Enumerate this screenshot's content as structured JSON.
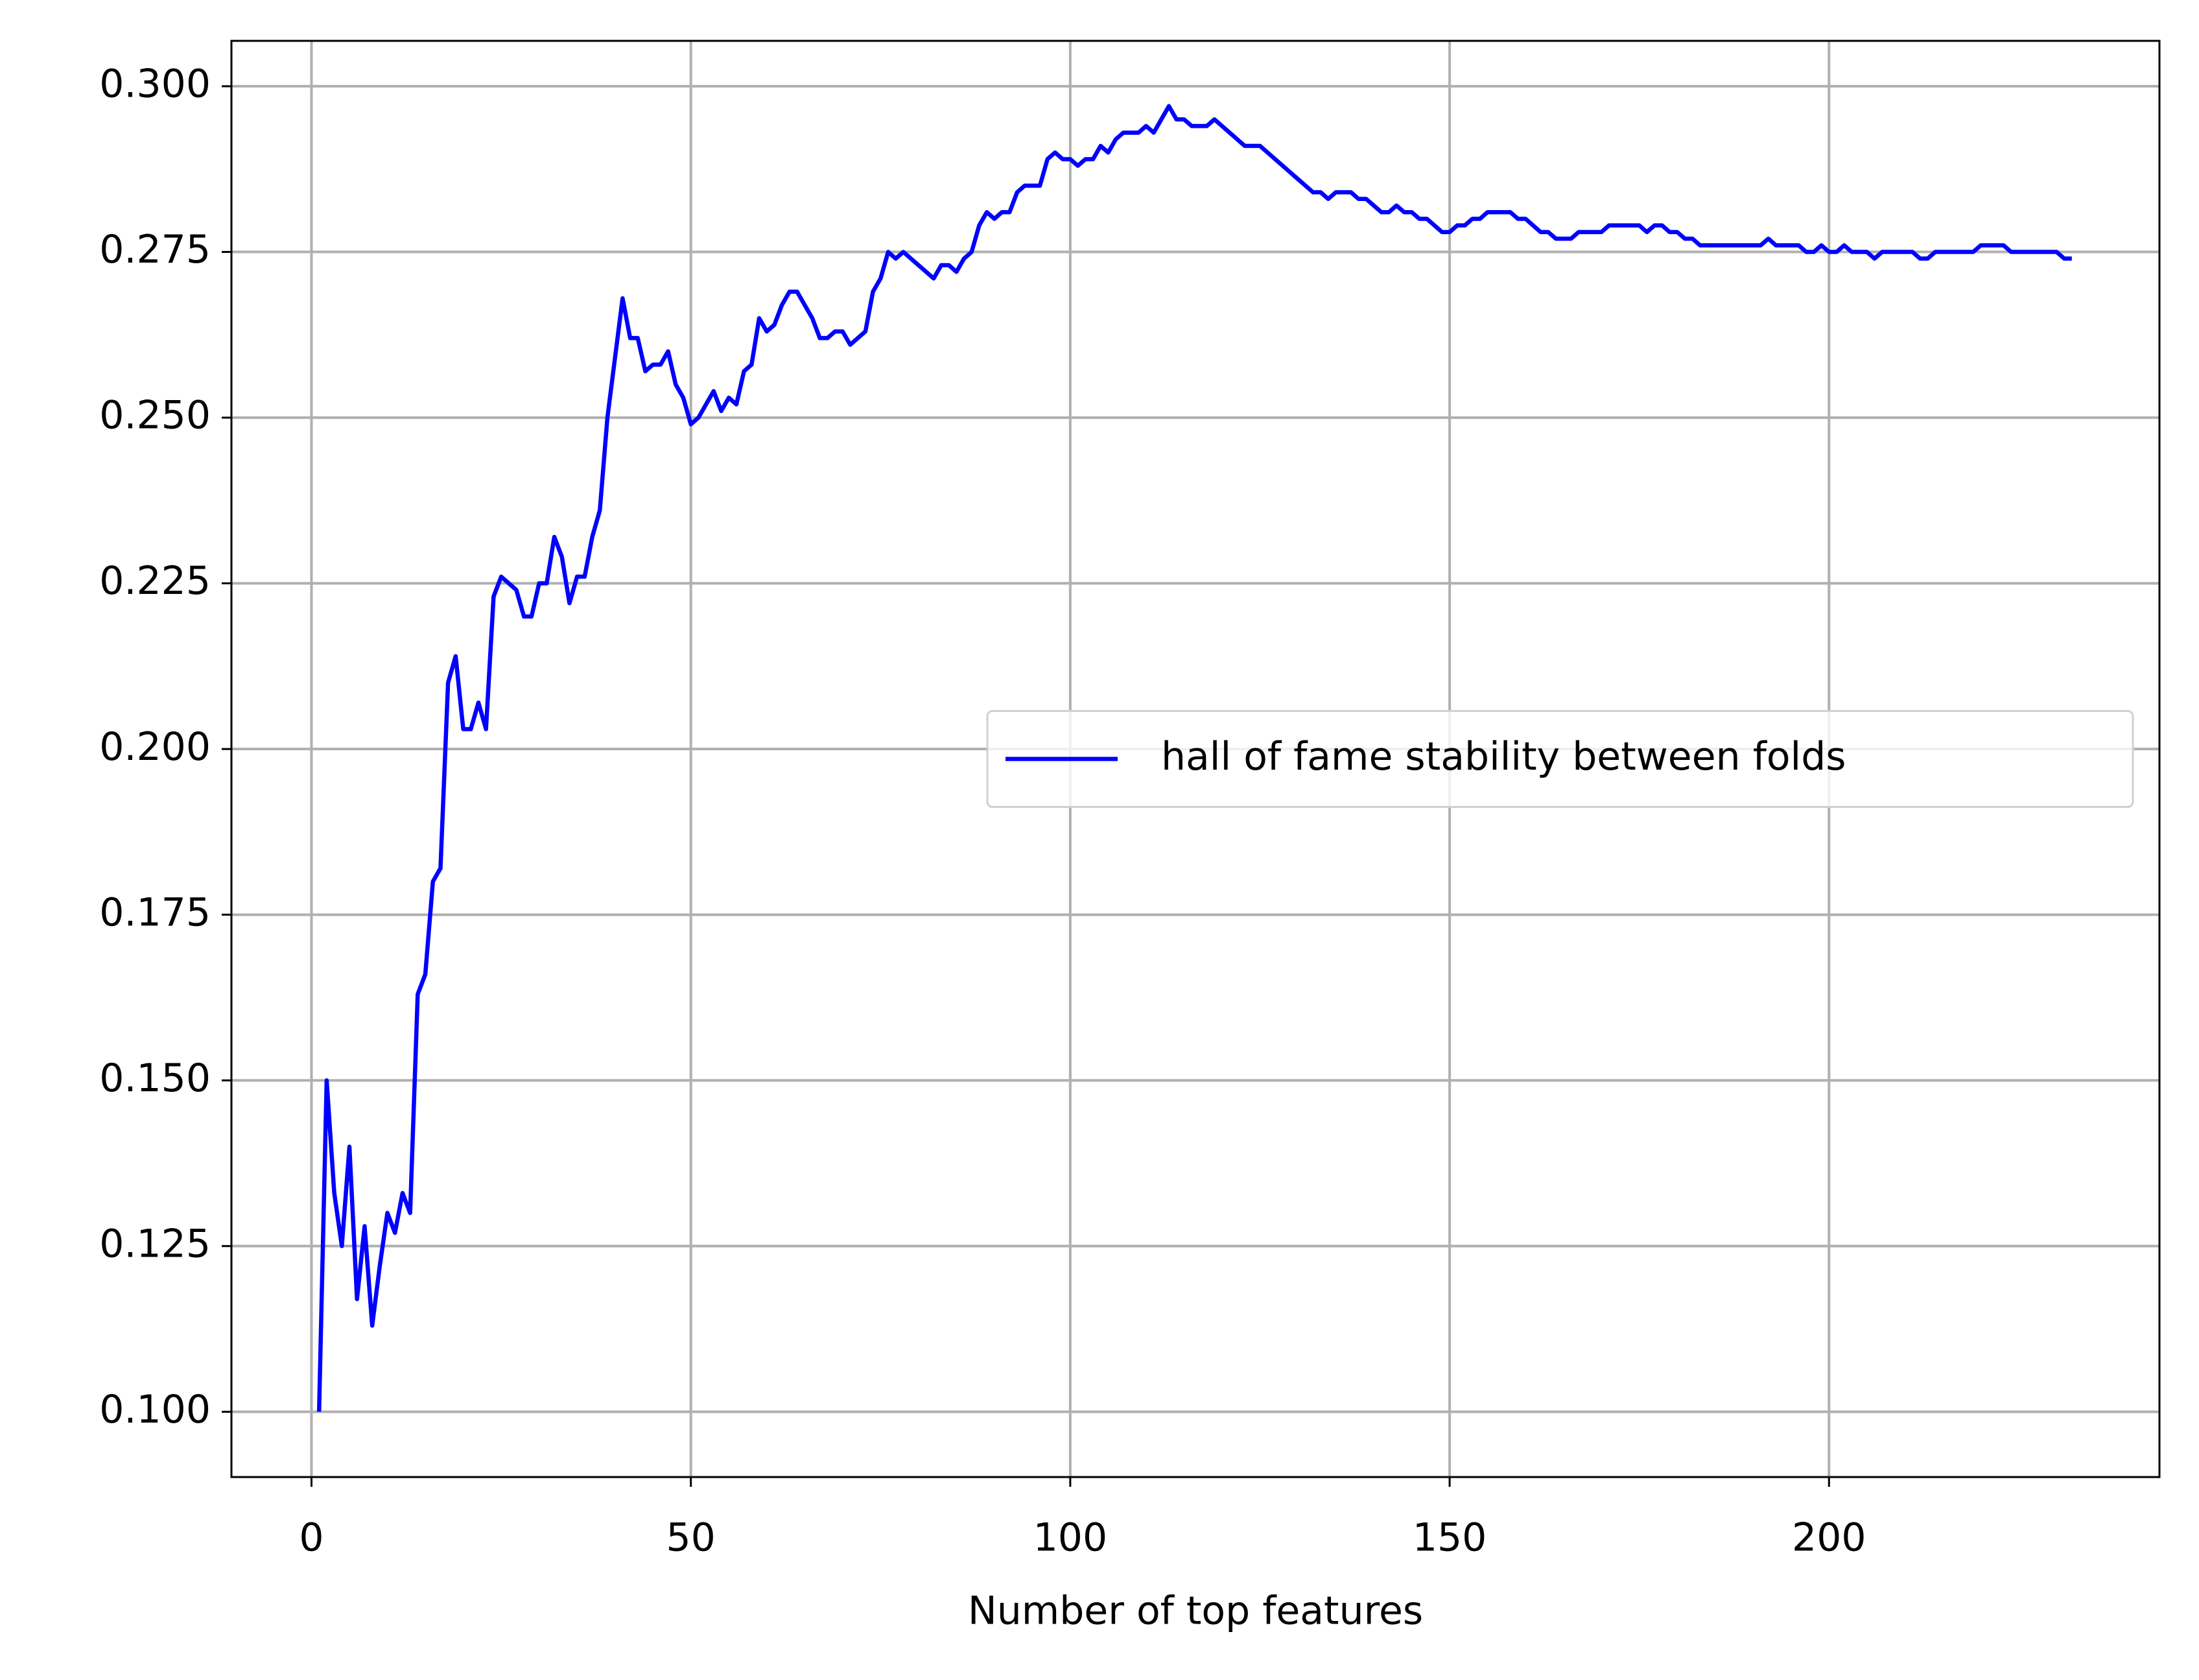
{
  "chart_data": {
    "type": "line",
    "xlabel": "Number of top features",
    "x": [
      1,
      2,
      3,
      4,
      5,
      6,
      7,
      8,
      9,
      10,
      11,
      12,
      13,
      14,
      15,
      16,
      17,
      18,
      19,
      20,
      21,
      22,
      23,
      24,
      25,
      26,
      27,
      28,
      29,
      30,
      31,
      32,
      33,
      34,
      35,
      36,
      37,
      38,
      39,
      40,
      41,
      42,
      43,
      44,
      45,
      46,
      47,
      48,
      49,
      50,
      51,
      52,
      53,
      54,
      55,
      56,
      57,
      58,
      59,
      60,
      61,
      62,
      63,
      64,
      65,
      66,
      67,
      68,
      69,
      70,
      71,
      72,
      73,
      74,
      75,
      76,
      77,
      78,
      79,
      80,
      81,
      82,
      83,
      84,
      85,
      86,
      87,
      88,
      89,
      90,
      91,
      92,
      93,
      94,
      95,
      96,
      97,
      98,
      99,
      100,
      101,
      102,
      103,
      104,
      105,
      106,
      107,
      108,
      109,
      110,
      111,
      112,
      113,
      114,
      115,
      116,
      117,
      118,
      119,
      120,
      121,
      122,
      123,
      124,
      125,
      126,
      127,
      128,
      129,
      130,
      131,
      132,
      133,
      134,
      135,
      136,
      137,
      138,
      139,
      140,
      141,
      142,
      143,
      144,
      145,
      146,
      147,
      148,
      149,
      150,
      151,
      152,
      153,
      154,
      155,
      156,
      157,
      158,
      159,
      160,
      161,
      162,
      163,
      164,
      165,
      166,
      167,
      168,
      169,
      170,
      171,
      172,
      173,
      174,
      175,
      176,
      177,
      178,
      179,
      180,
      181,
      182,
      183,
      184,
      185,
      186,
      187,
      188,
      189,
      190,
      191,
      192,
      193,
      194,
      195,
      196,
      197,
      198,
      199,
      200,
      201,
      202,
      203,
      204,
      205,
      206,
      207,
      208,
      209,
      210,
      211,
      212,
      213,
      214,
      215,
      216,
      217,
      218,
      219,
      220,
      221,
      222,
      223,
      224,
      225,
      226,
      227,
      228,
      229,
      230,
      231,
      232
    ],
    "series": [
      {
        "name": "hall of fame stability between folds",
        "color": "#0000ff",
        "values": [
          0.1,
          0.15,
          0.133,
          0.125,
          0.14,
          0.117,
          0.128,
          0.113,
          0.122,
          0.13,
          0.127,
          0.133,
          0.13,
          0.163,
          0.166,
          0.18,
          0.182,
          0.21,
          0.214,
          0.203,
          0.203,
          0.207,
          0.203,
          0.223,
          0.226,
          0.225,
          0.224,
          0.22,
          0.22,
          0.225,
          0.225,
          0.232,
          0.229,
          0.222,
          0.226,
          0.226,
          0.232,
          0.236,
          0.25,
          0.259,
          0.268,
          0.262,
          0.262,
          0.257,
          0.258,
          0.258,
          0.26,
          0.255,
          0.253,
          0.249,
          0.25,
          0.252,
          0.254,
          0.251,
          0.253,
          0.252,
          0.257,
          0.258,
          0.265,
          0.263,
          0.264,
          0.267,
          0.269,
          0.269,
          0.267,
          0.265,
          0.262,
          0.262,
          0.263,
          0.263,
          0.261,
          0.262,
          0.263,
          0.269,
          0.271,
          0.275,
          0.274,
          0.275,
          0.274,
          0.273,
          0.272,
          0.271,
          0.273,
          0.273,
          0.272,
          0.274,
          0.275,
          0.279,
          0.281,
          0.28,
          0.281,
          0.281,
          0.284,
          0.285,
          0.285,
          0.285,
          0.289,
          0.29,
          0.289,
          0.289,
          0.288,
          0.289,
          0.289,
          0.291,
          0.29,
          0.292,
          0.293,
          0.293,
          0.293,
          0.294,
          0.293,
          0.295,
          0.297,
          0.295,
          0.295,
          0.294,
          0.294,
          0.294,
          0.295,
          0.294,
          0.293,
          0.292,
          0.291,
          0.291,
          0.291,
          0.29,
          0.289,
          0.288,
          0.287,
          0.286,
          0.285,
          0.284,
          0.284,
          0.283,
          0.284,
          0.284,
          0.284,
          0.283,
          0.283,
          0.282,
          0.281,
          0.281,
          0.282,
          0.281,
          0.281,
          0.28,
          0.28,
          0.279,
          0.278,
          0.278,
          0.279,
          0.279,
          0.28,
          0.28,
          0.281,
          0.281,
          0.281,
          0.281,
          0.28,
          0.28,
          0.279,
          0.278,
          0.278,
          0.277,
          0.277,
          0.277,
          0.278,
          0.278,
          0.278,
          0.278,
          0.279,
          0.279,
          0.279,
          0.279,
          0.279,
          0.278,
          0.279,
          0.279,
          0.278,
          0.278,
          0.277,
          0.277,
          0.276,
          0.276,
          0.276,
          0.276,
          0.276,
          0.276,
          0.276,
          0.276,
          0.276,
          0.277,
          0.276,
          0.276,
          0.276,
          0.276,
          0.275,
          0.275,
          0.276,
          0.275,
          0.275,
          0.276,
          0.275,
          0.275,
          0.275,
          0.274,
          0.275,
          0.275,
          0.275,
          0.275,
          0.275,
          0.274,
          0.274,
          0.275,
          0.275,
          0.275,
          0.275,
          0.275,
          0.275,
          0.276,
          0.276,
          0.276,
          0.276,
          0.275,
          0.275,
          0.275,
          0.275,
          0.275,
          0.275,
          0.275,
          0.274,
          0.274
        ]
      }
    ],
    "xlim": [
      -10.55,
      243.55
    ],
    "ylim": [
      0.09015,
      0.30685
    ],
    "xticks": [
      0,
      50,
      100,
      150,
      200
    ],
    "yticks": [
      {
        "value": 0.1,
        "label": "0.100"
      },
      {
        "value": 0.125,
        "label": "0.125"
      },
      {
        "value": 0.15,
        "label": "0.150"
      },
      {
        "value": 0.175,
        "label": "0.175"
      },
      {
        "value": 0.2,
        "label": "0.200"
      },
      {
        "value": 0.225,
        "label": "0.225"
      },
      {
        "value": 0.25,
        "label": "0.250"
      },
      {
        "value": 0.275,
        "label": "0.275"
      },
      {
        "value": 0.3,
        "label": "0.300"
      }
    ],
    "grid": true,
    "legend": "center right"
  }
}
